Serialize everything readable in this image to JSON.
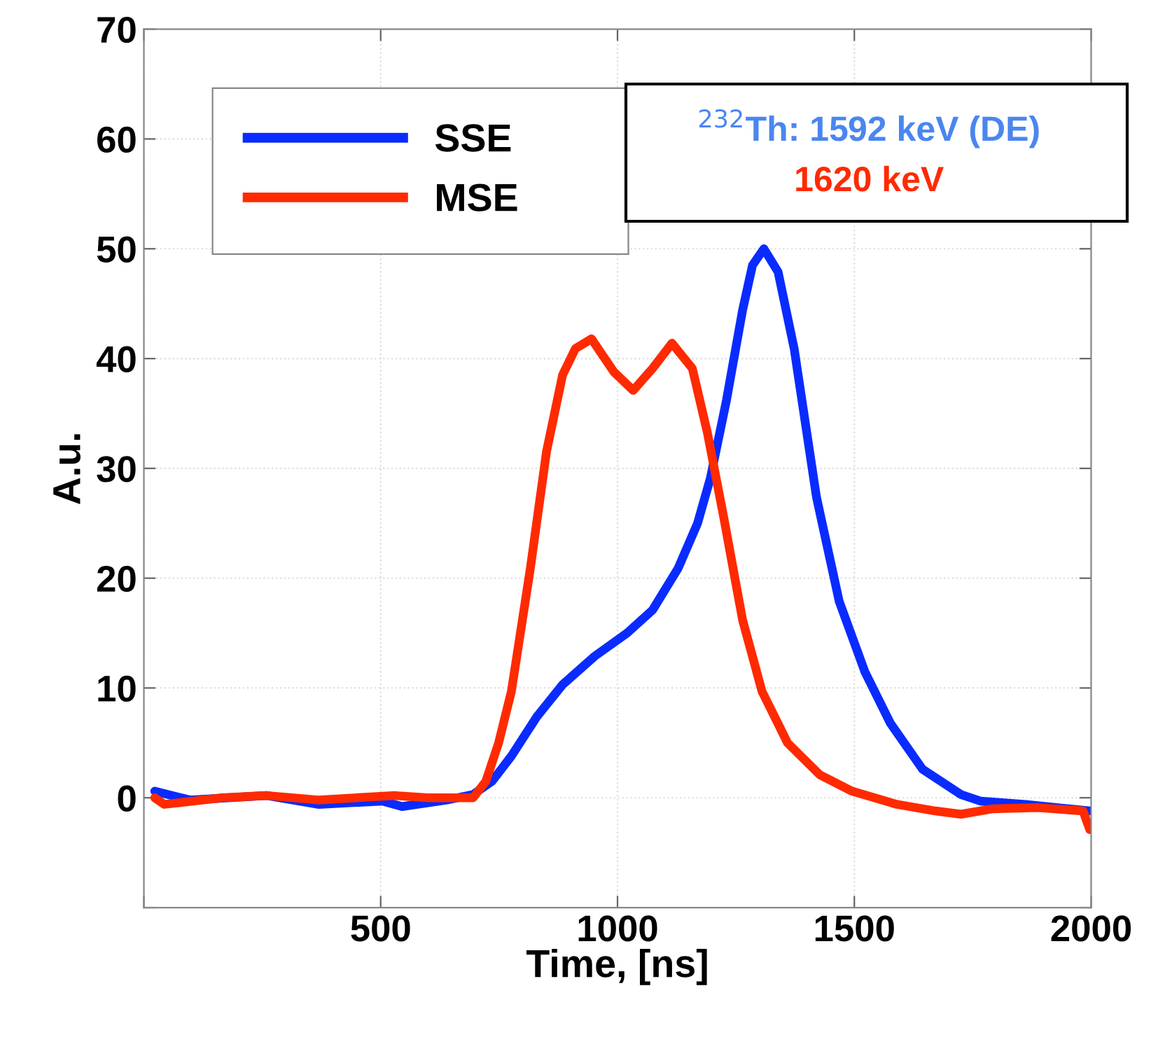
{
  "chart_data": {
    "type": "line",
    "xlabel": "Time, [ns]",
    "ylabel": "A.u.",
    "xlim": [
      0,
      2000
    ],
    "ylim": [
      -10,
      70
    ],
    "xticks": [
      {
        "value": 0,
        "label": null
      },
      500,
      1000,
      1500,
      2000
    ],
    "yticks": [
      {
        "value": -10,
        "label": null
      },
      0,
      10,
      20,
      30,
      40,
      50,
      60,
      70
    ],
    "grid": true,
    "legend": "top left",
    "line_style": "solid",
    "marker": "none",
    "annotations": [
      "$^{232}$Th: 1592 keV (DE)",
      "1620 keV"
    ],
    "series": [
      {
        "name": "SSE",
        "color": "#0a2bff",
        "x": [
          23,
          97,
          260,
          368,
          504,
          545,
          640,
          695,
          735,
          776,
          830,
          884,
          952,
          1020,
          1074,
          1128,
          1169,
          1196,
          1230,
          1264,
          1285,
          1309,
          1339,
          1373,
          1420,
          1468,
          1522,
          1576,
          1644,
          1725,
          1766,
          1861,
          1997
        ],
        "values": [
          0.6,
          -0.2,
          0.2,
          -0.6,
          -0.3,
          -0.8,
          -0.2,
          0.3,
          1.5,
          3.8,
          7.4,
          10.3,
          12.9,
          15,
          17.1,
          20.9,
          25,
          29.1,
          36.2,
          44.4,
          48.5,
          50,
          47.9,
          40.9,
          27.4,
          17.9,
          11.5,
          6.8,
          2.6,
          0.3,
          -0.3,
          -0.6,
          -1.2
        ]
      },
      {
        "name": "MSE",
        "color": "#ff2a00",
        "x": [
          23,
          43,
          165,
          260,
          368,
          531,
          599,
          695,
          722,
          749,
          776,
          816,
          850,
          884,
          911,
          945,
          992,
          1033,
          1074,
          1115,
          1158,
          1190,
          1224,
          1264,
          1305,
          1359,
          1427,
          1495,
          1590,
          1671,
          1725,
          1793,
          1888,
          1983,
          1997
        ],
        "values": [
          0,
          -0.6,
          0,
          0.2,
          -0.2,
          0.2,
          0,
          0,
          1.5,
          5,
          9.7,
          20.9,
          31.5,
          38.5,
          40.9,
          41.8,
          38.8,
          37.1,
          39.1,
          41.4,
          39.1,
          33.2,
          25.6,
          16.2,
          9.7,
          5,
          2.1,
          0.6,
          -0.6,
          -1.2,
          -1.5,
          -1,
          -0.9,
          -1.2,
          -2.9
        ]
      }
    ]
  }
}
